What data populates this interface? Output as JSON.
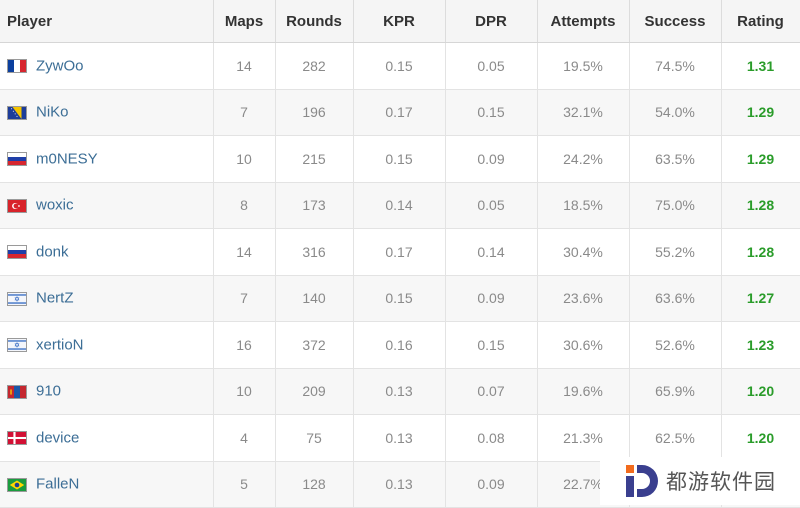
{
  "columns": {
    "player": "Player",
    "maps": "Maps",
    "rounds": "Rounds",
    "kpr": "KPR",
    "dpr": "DPR",
    "attempts": "Attempts",
    "success": "Success",
    "rating": "Rating"
  },
  "rows": [
    {
      "flag": "france",
      "name": "ZywOo",
      "maps": "14",
      "rounds": "282",
      "kpr": "0.15",
      "dpr": "0.05",
      "attempts": "19.5%",
      "success": "74.5%",
      "rating": "1.31"
    },
    {
      "flag": "bosnia",
      "name": "NiKo",
      "maps": "7",
      "rounds": "196",
      "kpr": "0.17",
      "dpr": "0.15",
      "attempts": "32.1%",
      "success": "54.0%",
      "rating": "1.29"
    },
    {
      "flag": "russia",
      "name": "m0NESY",
      "maps": "10",
      "rounds": "215",
      "kpr": "0.15",
      "dpr": "0.09",
      "attempts": "24.2%",
      "success": "63.5%",
      "rating": "1.29"
    },
    {
      "flag": "turkey",
      "name": "woxic",
      "maps": "8",
      "rounds": "173",
      "kpr": "0.14",
      "dpr": "0.05",
      "attempts": "18.5%",
      "success": "75.0%",
      "rating": "1.28"
    },
    {
      "flag": "russia",
      "name": "donk",
      "maps": "14",
      "rounds": "316",
      "kpr": "0.17",
      "dpr": "0.14",
      "attempts": "30.4%",
      "success": "55.2%",
      "rating": "1.28"
    },
    {
      "flag": "israel",
      "name": "NertZ",
      "maps": "7",
      "rounds": "140",
      "kpr": "0.15",
      "dpr": "0.09",
      "attempts": "23.6%",
      "success": "63.6%",
      "rating": "1.27"
    },
    {
      "flag": "israel",
      "name": "xertioN",
      "maps": "16",
      "rounds": "372",
      "kpr": "0.16",
      "dpr": "0.15",
      "attempts": "30.6%",
      "success": "52.6%",
      "rating": "1.23"
    },
    {
      "flag": "mongolia",
      "name": "910",
      "maps": "10",
      "rounds": "209",
      "kpr": "0.13",
      "dpr": "0.07",
      "attempts": "19.6%",
      "success": "65.9%",
      "rating": "1.20"
    },
    {
      "flag": "denmark",
      "name": "device",
      "maps": "4",
      "rounds": "75",
      "kpr": "0.13",
      "dpr": "0.08",
      "attempts": "21.3%",
      "success": "62.5%",
      "rating": "1.20"
    },
    {
      "flag": "brazil",
      "name": "FalleN",
      "maps": "5",
      "rounds": "128",
      "kpr": "0.13",
      "dpr": "0.09",
      "attempts": "22.7%",
      "success": "",
      "rating": ""
    }
  ],
  "colors": {
    "rating_green": "#2a9c2a",
    "player_link": "#3c6e96",
    "header_bg": "#f5f5f5",
    "cell_text": "#8a8a8a"
  },
  "watermark": {
    "text": "都游软件园",
    "logo_icon": "d-logo-icon"
  }
}
